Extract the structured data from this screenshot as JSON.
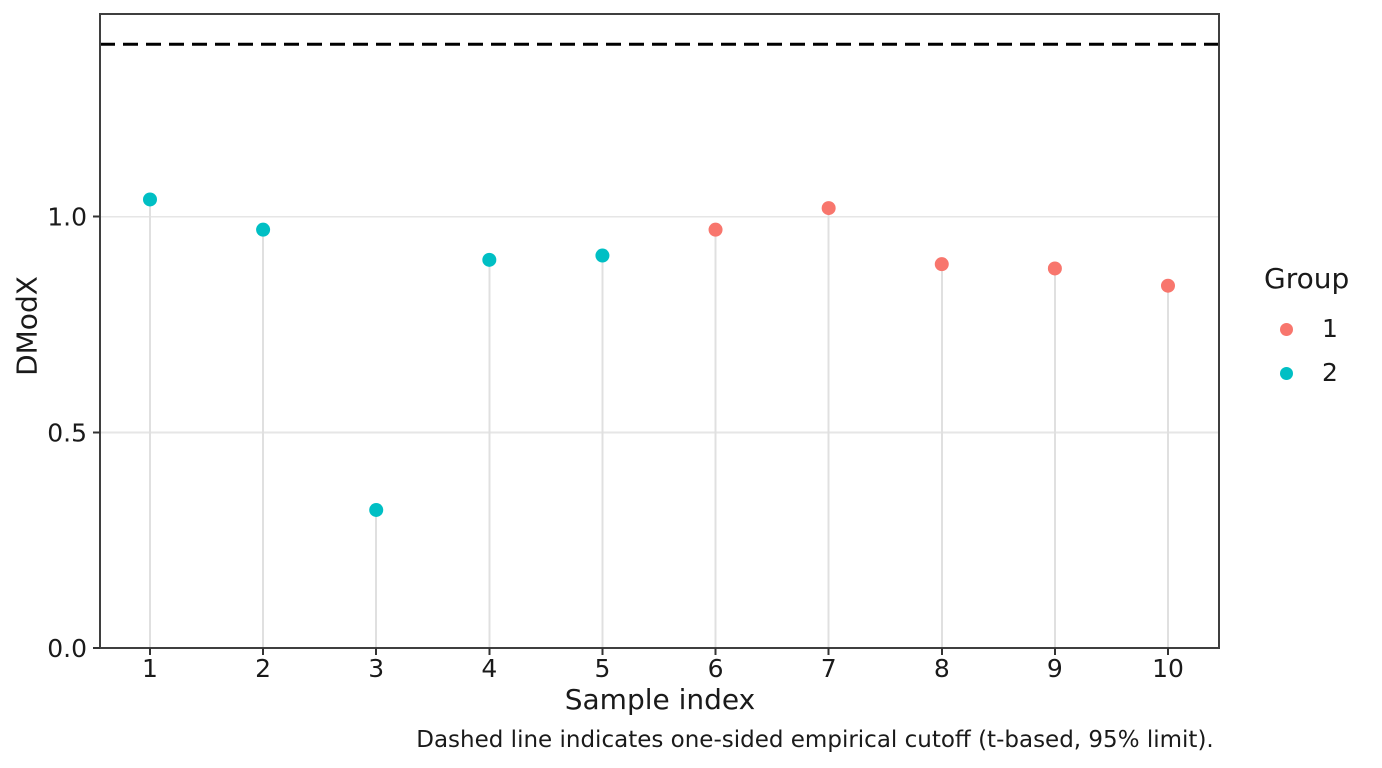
{
  "figure": {
    "y_axis_title": "DModX",
    "x_axis_title": "Sample index",
    "caption": "Dashed line indicates one-sided empirical cutoff (t-based, 95% limit).",
    "legend": {
      "title": "Group"
    },
    "colors": {
      "background": "#FFFFFF",
      "panel_border": "#3F3F3F",
      "grid": "#E6E6E6",
      "stem": "#E0E0E0",
      "tick": "#333333",
      "text": "#1A1A1A",
      "cutoff_line": "#000000",
      "group_1": "#F8766D",
      "group_2": "#00BFC4"
    }
  },
  "chart_data": {
    "type": "scatter",
    "subtype": "lollipop",
    "title": "",
    "xlabel": "Sample index",
    "ylabel": "DModX",
    "legend_title": "Group",
    "legend_position": "right",
    "grid": {
      "horizontal_major": true,
      "vertical": false
    },
    "xlim": [
      0.558,
      10.451
    ],
    "ylim": [
      0,
      1.47
    ],
    "xticks": [
      {
        "value": 1,
        "label": "1"
      },
      {
        "value": 2,
        "label": "2"
      },
      {
        "value": 3,
        "label": "3"
      },
      {
        "value": 4,
        "label": "4"
      },
      {
        "value": 5,
        "label": "5"
      },
      {
        "value": 6,
        "label": "6"
      },
      {
        "value": 7,
        "label": "7"
      },
      {
        "value": 8,
        "label": "8"
      },
      {
        "value": 9,
        "label": "9"
      },
      {
        "value": 10,
        "label": "10"
      }
    ],
    "yticks": [
      {
        "value": 0.0,
        "label": "0.0"
      },
      {
        "value": 0.5,
        "label": "0.5"
      },
      {
        "value": 1.0,
        "label": "1.0"
      }
    ],
    "series": [
      {
        "name": "1",
        "color": "#F8766D",
        "points": [
          {
            "x": 6,
            "y": 0.97
          },
          {
            "x": 7,
            "y": 1.02
          },
          {
            "x": 8,
            "y": 0.89
          },
          {
            "x": 9,
            "y": 0.88
          },
          {
            "x": 10,
            "y": 0.84
          }
        ]
      },
      {
        "name": "2",
        "color": "#00BFC4",
        "points": [
          {
            "x": 1,
            "y": 1.04
          },
          {
            "x": 2,
            "y": 0.97
          },
          {
            "x": 3,
            "y": 0.32
          },
          {
            "x": 4,
            "y": 0.9
          },
          {
            "x": 5,
            "y": 0.91
          }
        ]
      }
    ],
    "cutoff": {
      "value": 1.4,
      "style": "dashed",
      "side": "one-sided",
      "description": "one-sided empirical cutoff (t-based, 95% limit)"
    }
  }
}
